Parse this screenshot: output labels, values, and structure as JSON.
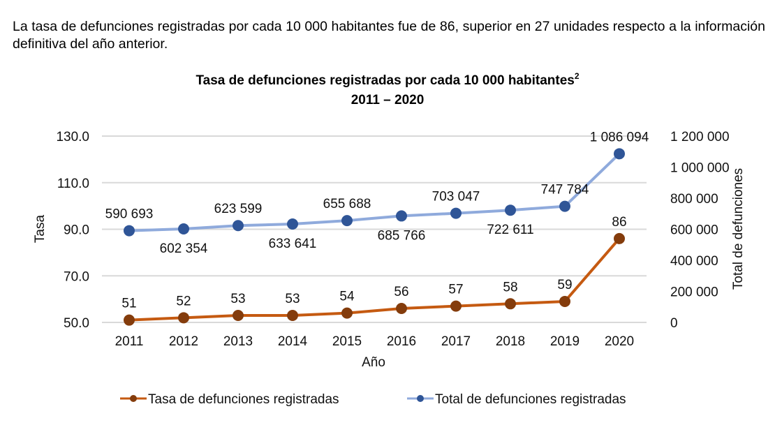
{
  "intro_text": "La tasa de defunciones registradas por cada 10 000 habitantes fue de 86, superior en 27 unidades respecto a la información definitiva del año anterior.",
  "chart_data": {
    "type": "line",
    "title": "Tasa de defunciones registradas por cada 10 000 habitantes",
    "title_superscript": "2",
    "subtitle": "2011 – 2020",
    "xlabel": "Año",
    "ylabel": "Tasa",
    "y2label": "Total de defunciones",
    "categories": [
      "2011",
      "2012",
      "2013",
      "2014",
      "2015",
      "2016",
      "2017",
      "2018",
      "2019",
      "2020"
    ],
    "y_axis": {
      "range": [
        50,
        130
      ],
      "ticks": [
        50,
        70,
        90,
        110,
        130
      ],
      "tick_labels": [
        "50.0",
        "70.0",
        "90.0",
        "110.0",
        "130.0"
      ]
    },
    "y2_axis": {
      "range": [
        0,
        1200000
      ],
      "ticks": [
        0,
        200000,
        400000,
        600000,
        800000,
        1000000,
        1200000
      ],
      "tick_labels": [
        "0",
        "200 000",
        "400 000",
        "600 000",
        "800 000",
        "1 000 000",
        "1 200 000"
      ]
    },
    "grid": true,
    "legend_position": "bottom",
    "series": [
      {
        "name": "Tasa de defunciones registradas",
        "axis": "left",
        "color": "#c55a11",
        "marker_color": "#843c0c",
        "values": [
          51,
          52,
          53,
          53,
          54,
          56,
          57,
          58,
          59,
          86
        ],
        "labels": [
          "51",
          "52",
          "53",
          "53",
          "54",
          "56",
          "57",
          "58",
          "59",
          "86"
        ],
        "label_positions": [
          "above",
          "above",
          "above",
          "above",
          "above",
          "above",
          "above",
          "above",
          "above",
          "above"
        ]
      },
      {
        "name": "Total de defunciones registradas",
        "axis": "right",
        "color": "#8faadc",
        "marker_color": "#2f5597",
        "values": [
          590693,
          602354,
          623599,
          633641,
          655688,
          685766,
          703047,
          722611,
          747784,
          1086094
        ],
        "labels": [
          "590 693",
          "602 354",
          "623 599",
          "633 641",
          "655 688",
          "685 766",
          "703 047",
          "722 611",
          "747 784",
          "1 086 094"
        ],
        "label_positions": [
          "above",
          "below",
          "above",
          "below",
          "above",
          "below",
          "above",
          "below",
          "above",
          "above"
        ]
      }
    ]
  }
}
